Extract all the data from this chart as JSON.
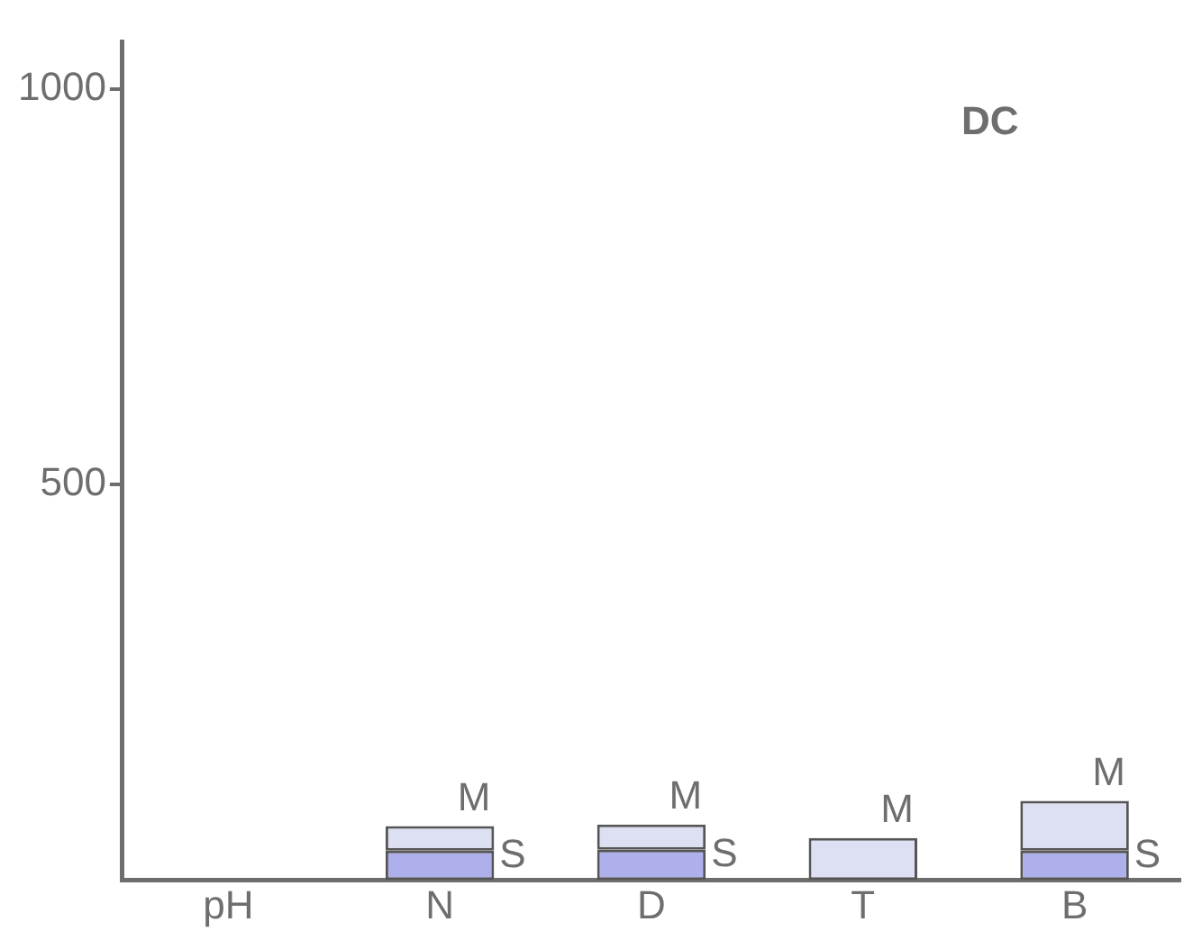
{
  "chart_data": {
    "type": "bar",
    "title": "DC",
    "categories": [
      "pH",
      "N",
      "D",
      "T",
      "B"
    ],
    "stacked": true,
    "series": [
      {
        "name": "S",
        "color": "#aeb0ec",
        "values": [
          null,
          37,
          38,
          null,
          37
        ]
      },
      {
        "name": "M",
        "color": "#dddff2",
        "values": [
          null,
          31,
          32,
          53,
          63
        ]
      }
    ],
    "ylim": [
      0,
      1060
    ],
    "yticks": [
      500,
      1000
    ],
    "grid": false
  }
}
